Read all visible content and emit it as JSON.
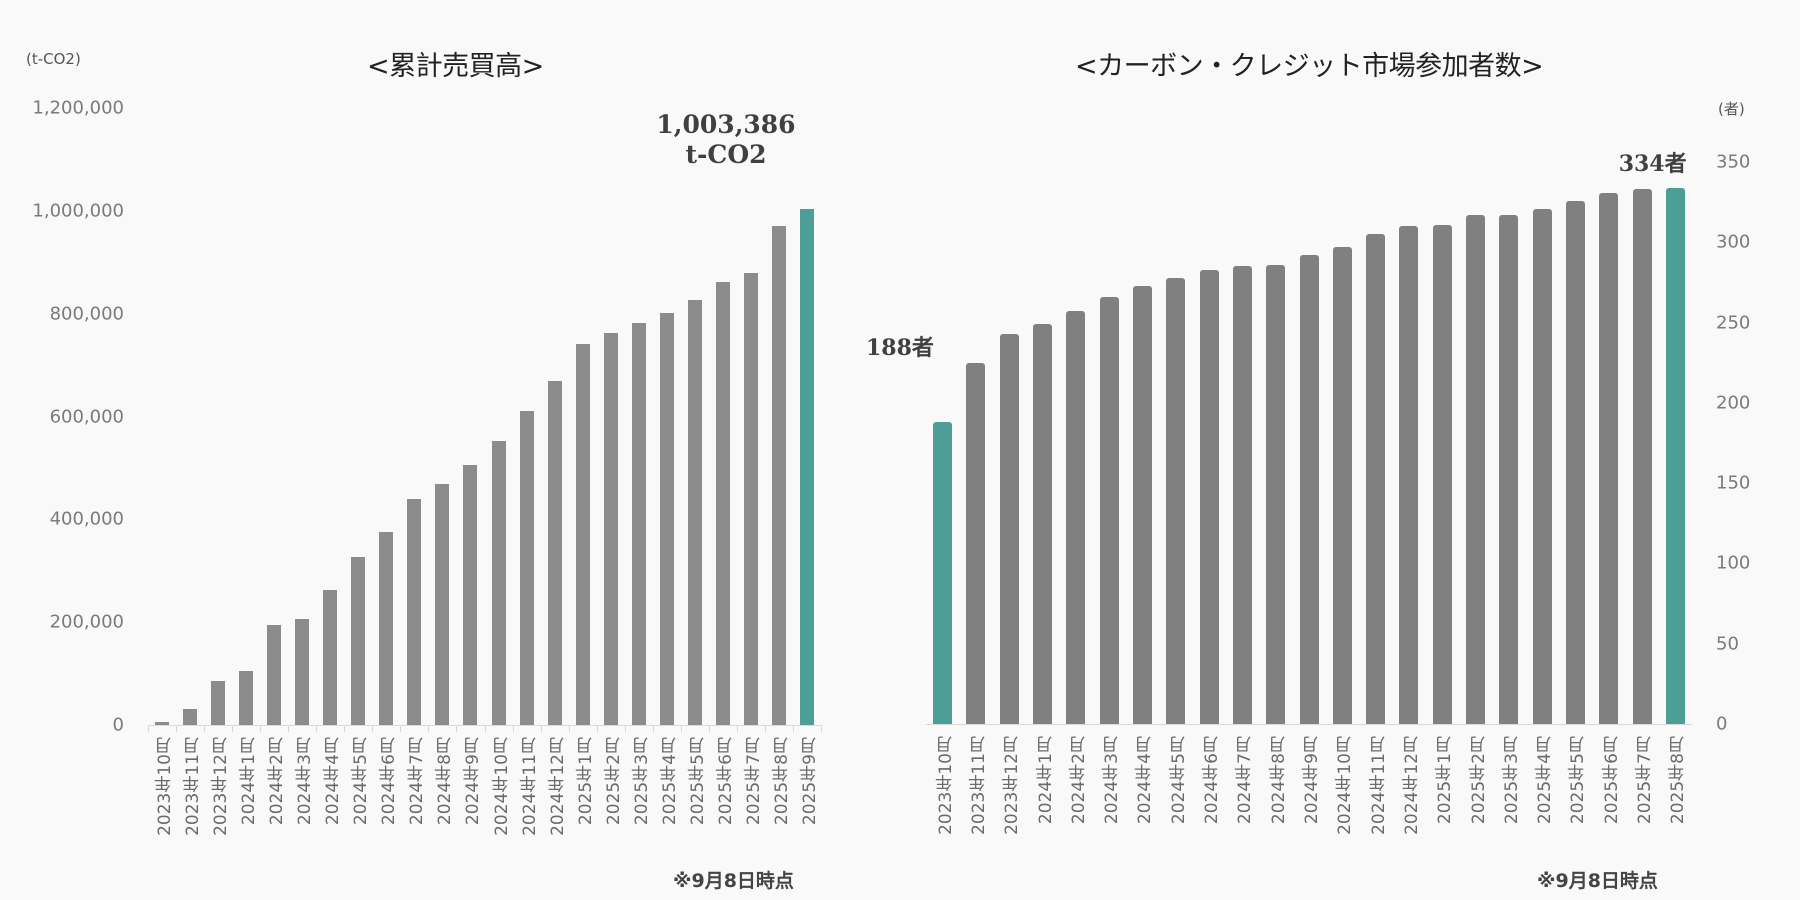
{
  "chart_data": [
    {
      "type": "bar",
      "title": "<累計売買高>",
      "unit_label": "(t-CO2)",
      "xlabel": "",
      "ylabel": "(t-CO2)",
      "ylim": [
        0,
        1200000
      ],
      "yticks": [
        "0",
        "200,000",
        "400,000",
        "600,000",
        "800,000",
        "1,000,000",
        "1,200,000"
      ],
      "grid": false,
      "legend": null,
      "categories": [
        "2023年10月",
        "2023年11月",
        "2023年12月",
        "2024年1月",
        "2024年2月",
        "2024年3月",
        "2024年4月",
        "2024年5月",
        "2024年6月",
        "2024年7月",
        "2024年8月",
        "2024年9月",
        "2024年10月",
        "2024年11月",
        "2024年12月",
        "2025年1月",
        "2025年2月",
        "2025年3月",
        "2025年4月",
        "2025年5月",
        "2025年6月",
        "2025年7月",
        "2025年8月",
        "2025年9月"
      ],
      "values": [
        5000,
        31000,
        85000,
        105000,
        194000,
        206000,
        262000,
        326000,
        375000,
        439000,
        468000,
        505000,
        553000,
        610000,
        669000,
        741000,
        763000,
        782000,
        801000,
        827000,
        861000,
        879000,
        970000,
        1003386
      ],
      "highlight_index": 23,
      "annotation": {
        "line1": "1,003,386",
        "line2": "t-CO2"
      },
      "note": "※9月8日時点",
      "colors": {
        "bar": "#8c8c8c",
        "highlight": "#4e9e98"
      }
    },
    {
      "type": "bar",
      "title": "<カーボン・クレジット市場参加者数>",
      "unit_label": "(者)",
      "xlabel": "",
      "ylabel": "(者)",
      "ylim": [
        0,
        350
      ],
      "yticks": [
        "0",
        "50",
        "100",
        "150",
        "200",
        "250",
        "300",
        "350"
      ],
      "y_axis_position": "right",
      "grid": false,
      "legend": null,
      "categories": [
        "2023年10月",
        "2023年11月",
        "2023年12月",
        "2024年1月",
        "2024年2月",
        "2024年3月",
        "2024年4月",
        "2024年5月",
        "2024年6月",
        "2024年7月",
        "2024年8月",
        "2024年9月",
        "2024年10月",
        "2024年11月",
        "2024年12月",
        "2025年1月",
        "2025年2月",
        "2025年3月",
        "2025年4月",
        "2025年5月",
        "2025年6月",
        "2025年7月",
        "2025年8月"
      ],
      "values": [
        188,
        225,
        243,
        249,
        257,
        266,
        273,
        278,
        283,
        285,
        286,
        292,
        297,
        305,
        310,
        311,
        317,
        317,
        321,
        326,
        331,
        333,
        334
      ],
      "highlight_indices": [
        0,
        22
      ],
      "annotations": {
        "first": "188者",
        "last": "334者"
      },
      "note": "※9月8日時点",
      "colors": {
        "bar": "#808080",
        "highlight": "#4e9e98"
      }
    }
  ]
}
